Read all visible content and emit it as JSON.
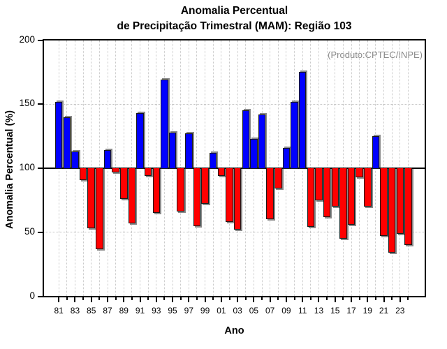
{
  "title": {
    "line1": "Anomalia Percentual",
    "line2": "de Precipitação Trimestral (MAM): Região 103"
  },
  "annotation": "(Produto:CPTEC/INPE)",
  "chart_data": {
    "type": "bar",
    "title": "Anomalia Percentual de Precipitação Trimestral (MAM): Região 103",
    "xlabel": "Ano",
    "ylabel": "Anomalia Percentual (%)",
    "ylim": [
      0,
      200
    ],
    "yticks": [
      0,
      50,
      100,
      150,
      200
    ],
    "ytick_labels": [
      "0",
      "50",
      "100",
      "150",
      "200"
    ],
    "baseline": 100,
    "grid": "dotted",
    "legend_position": "none",
    "bar_colors": {
      "above_baseline": "#0000ff",
      "below_baseline": "#ff0000"
    },
    "x_tick_labels": [
      "81",
      "83",
      "85",
      "87",
      "89",
      "91",
      "93",
      "95",
      "97",
      "99",
      "01",
      "03",
      "05",
      "07",
      "09",
      "11",
      "13",
      "15",
      "17",
      "19",
      "21",
      "23"
    ],
    "years": [
      1981,
      1982,
      1983,
      1984,
      1985,
      1986,
      1987,
      1988,
      1989,
      1990,
      1991,
      1992,
      1993,
      1994,
      1995,
      1996,
      1997,
      1998,
      1999,
      2000,
      2001,
      2002,
      2003,
      2004,
      2005,
      2006,
      2007,
      2008,
      2009,
      2010,
      2011,
      2012,
      2013,
      2014,
      2015,
      2016,
      2017,
      2018,
      2019,
      2020,
      2021,
      2022,
      2023,
      2024
    ],
    "values": [
      152,
      140,
      113,
      91,
      53,
      37,
      114,
      97,
      76,
      57,
      143,
      94,
      65,
      169,
      128,
      66,
      127,
      55,
      72,
      112,
      94,
      58,
      52,
      145,
      123,
      142,
      60,
      84,
      116,
      152,
      175,
      54,
      75,
      62,
      70,
      45,
      56,
      93,
      70,
      125,
      47,
      34,
      49,
      40
    ]
  }
}
